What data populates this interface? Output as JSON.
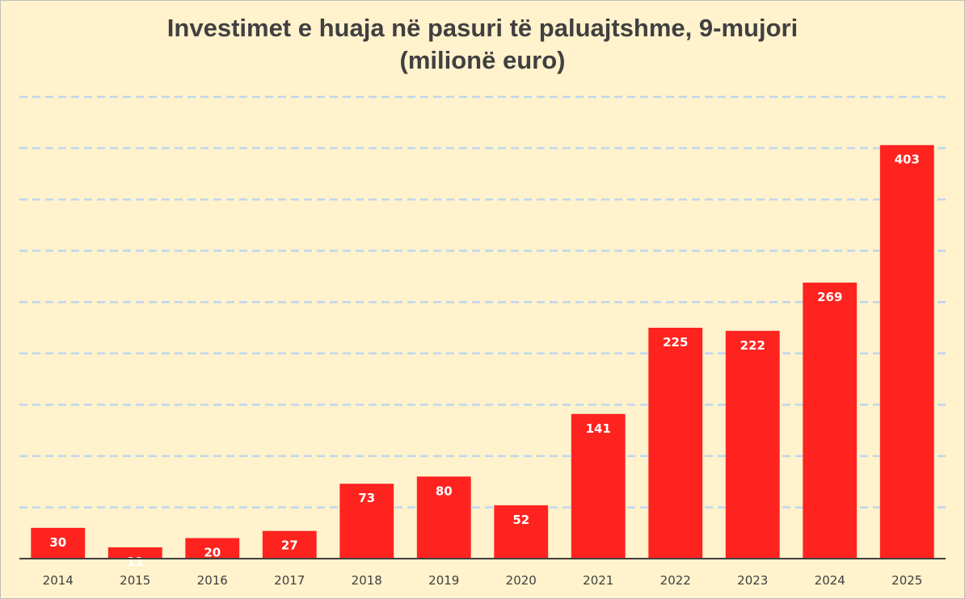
{
  "chart_data": {
    "type": "bar",
    "title": "Investimet e huaja në pasuri të paluajtshme, 9-mujori",
    "subtitle": "(milionë euro)",
    "categories": [
      "2014",
      "2015",
      "2016",
      "2017",
      "2018",
      "2019",
      "2020",
      "2021",
      "2022",
      "2023",
      "2024",
      "2025"
    ],
    "values": [
      30,
      11,
      20,
      27,
      73,
      80,
      52,
      141,
      225,
      222,
      269,
      403
    ],
    "ylim": [
      0,
      450
    ],
    "grid": true,
    "gridline_step": 50,
    "show_y_axis_labels": false,
    "data_labels": true,
    "colors": {
      "bar": "#ff231f",
      "background": "#fff2cc",
      "grid": "#bdd7ee",
      "axis": "#404040",
      "text": "#404040"
    }
  }
}
